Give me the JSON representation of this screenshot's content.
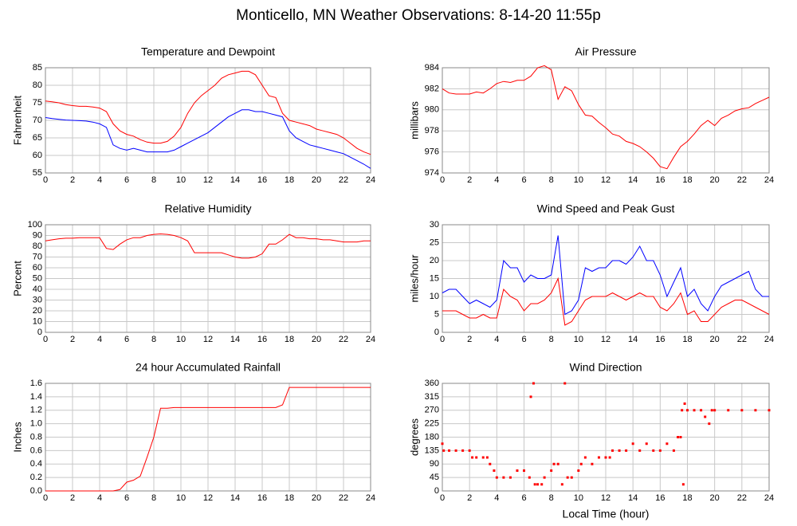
{
  "title": "Monticello, MN Weather Observations: 8-14-20 11:55p",
  "chart_data": [
    {
      "type": "line",
      "title": "Temperature and Dewpoint",
      "ylabel": "Fahrenheit",
      "xlim": [
        0,
        24
      ],
      "xticks": [
        0,
        2,
        4,
        6,
        8,
        10,
        12,
        14,
        16,
        18,
        20,
        22,
        24
      ],
      "ylim": [
        55,
        85
      ],
      "yticks": [
        55,
        60,
        65,
        70,
        75,
        80,
        85
      ],
      "grid": true,
      "x": [
        0,
        0.5,
        1,
        1.5,
        2,
        2.5,
        3,
        3.5,
        4,
        4.5,
        5,
        5.5,
        6,
        6.5,
        7,
        7.5,
        8,
        8.5,
        9,
        9.5,
        10,
        10.5,
        11,
        11.5,
        12,
        12.5,
        13,
        13.5,
        14,
        14.5,
        15,
        15.5,
        16,
        16.5,
        17,
        17.5,
        18,
        18.5,
        19,
        19.5,
        20,
        20.5,
        21,
        21.5,
        22,
        22.5,
        23,
        23.5,
        24
      ],
      "series": [
        {
          "color": "#ff0000",
          "values": [
            75.5,
            75.3,
            75,
            74.5,
            74.2,
            74,
            74,
            73.8,
            73.5,
            72.5,
            69,
            67,
            66,
            65.5,
            64.5,
            63.8,
            63.5,
            63.5,
            64,
            65.5,
            68,
            72,
            75,
            77,
            78.5,
            80,
            82,
            83,
            83.5,
            84,
            84,
            83,
            80,
            77,
            76.5,
            72,
            70,
            69.5,
            69,
            68.5,
            67.5,
            67,
            66.5,
            66,
            65,
            63.5,
            62,
            61,
            60.3
          ]
        },
        {
          "color": "#0000ff",
          "values": [
            70.8,
            70.5,
            70.3,
            70.1,
            70,
            69.9,
            69.8,
            69.5,
            69,
            68,
            63,
            62,
            61.5,
            62,
            61.5,
            61,
            61,
            61,
            61,
            61.5,
            62.5,
            63.5,
            64.5,
            65.5,
            66.5,
            68,
            69.5,
            71,
            72,
            73,
            73,
            72.5,
            72.5,
            72,
            71.5,
            71,
            67,
            65,
            64,
            63,
            62.5,
            62,
            61.5,
            61,
            60.5,
            59.5,
            58.5,
            57.5,
            56.3
          ]
        }
      ]
    },
    {
      "type": "line",
      "title": "Air Pressure",
      "ylabel": "millibars",
      "xlim": [
        0,
        24
      ],
      "xticks": [
        0,
        2,
        4,
        6,
        8,
        10,
        12,
        14,
        16,
        18,
        20,
        22,
        24
      ],
      "ylim": [
        974,
        984
      ],
      "yticks": [
        974,
        976,
        978,
        980,
        982,
        984
      ],
      "grid": true,
      "x": [
        0,
        0.5,
        1,
        1.5,
        2,
        2.5,
        3,
        3.5,
        4,
        4.5,
        5,
        5.5,
        6,
        6.5,
        7,
        7.5,
        8,
        8.5,
        9,
        9.5,
        10,
        10.5,
        11,
        11.5,
        12,
        12.5,
        13,
        13.5,
        14,
        14.5,
        15,
        15.5,
        16,
        16.5,
        17,
        17.5,
        18,
        18.5,
        19,
        19.5,
        20,
        20.5,
        21,
        21.5,
        22,
        22.5,
        23,
        23.5,
        24
      ],
      "series": [
        {
          "color": "#ff0000",
          "values": [
            982,
            981.6,
            981.5,
            981.5,
            981.5,
            981.7,
            981.6,
            982,
            982.5,
            982.7,
            982.6,
            982.8,
            982.8,
            983.2,
            984,
            984.2,
            983.8,
            981,
            982.2,
            981.8,
            980.5,
            979.5,
            979.4,
            978.8,
            978.3,
            977.7,
            977.5,
            977,
            976.8,
            976.5,
            976,
            975.4,
            974.6,
            974.4,
            975.5,
            976.5,
            977,
            977.7,
            978.5,
            979,
            978.5,
            979.2,
            979.5,
            979.9,
            980.1,
            980.2,
            980.6,
            980.9,
            981.2
          ]
        }
      ]
    },
    {
      "type": "line",
      "title": "Relative Humidity",
      "ylabel": "Percent",
      "xlim": [
        0,
        24
      ],
      "xticks": [
        0,
        2,
        4,
        6,
        8,
        10,
        12,
        14,
        16,
        18,
        20,
        22,
        24
      ],
      "ylim": [
        0,
        100
      ],
      "yticks": [
        0,
        10,
        20,
        30,
        40,
        50,
        60,
        70,
        80,
        90,
        100
      ],
      "grid": true,
      "x": [
        0,
        0.5,
        1,
        1.5,
        2,
        2.5,
        3,
        3.5,
        4,
        4.5,
        5,
        5.5,
        6,
        6.5,
        7,
        7.5,
        8,
        8.5,
        9,
        9.5,
        10,
        10.5,
        11,
        11.5,
        12,
        12.5,
        13,
        13.5,
        14,
        14.5,
        15,
        15.5,
        16,
        16.5,
        17,
        17.5,
        18,
        18.5,
        19,
        19.5,
        20,
        20.5,
        21,
        21.5,
        22,
        22.5,
        23,
        23.5,
        24
      ],
      "series": [
        {
          "color": "#ff0000",
          "values": [
            85,
            86,
            87,
            87.5,
            87.5,
            88,
            88,
            88,
            88,
            78,
            77,
            82,
            86,
            88,
            88,
            90,
            91,
            91.5,
            91,
            90,
            88,
            85,
            74,
            74,
            74,
            74,
            74,
            72,
            70,
            69,
            69,
            70,
            73,
            82,
            82,
            86,
            91,
            88,
            88,
            87,
            87,
            86,
            86,
            85,
            84,
            84,
            84,
            85,
            85
          ]
        }
      ]
    },
    {
      "type": "line",
      "title": "Wind Speed and Peak Gust",
      "ylabel": "miles/hour",
      "xlim": [
        0,
        24
      ],
      "xticks": [
        0,
        2,
        4,
        6,
        8,
        10,
        12,
        14,
        16,
        18,
        20,
        22,
        24
      ],
      "ylim": [
        0,
        30
      ],
      "yticks": [
        0,
        5,
        10,
        15,
        20,
        25,
        30
      ],
      "grid": true,
      "x": [
        0,
        0.5,
        1,
        1.5,
        2,
        2.5,
        3,
        3.5,
        4,
        4.5,
        5,
        5.5,
        6,
        6.5,
        7,
        7.5,
        8,
        8.5,
        9,
        9.5,
        10,
        10.5,
        11,
        11.5,
        12,
        12.5,
        13,
        13.5,
        14,
        14.5,
        15,
        15.5,
        16,
        16.5,
        17,
        17.5,
        18,
        18.5,
        19,
        19.5,
        20,
        20.5,
        21,
        21.5,
        22,
        22.5,
        23,
        23.5,
        24
      ],
      "series": [
        {
          "color": "#0000ff",
          "values": [
            11,
            12,
            12,
            10,
            8,
            9,
            8,
            7,
            9,
            20,
            18,
            18,
            14,
            16,
            15,
            15,
            16,
            27,
            5,
            6,
            9,
            18,
            17,
            18,
            18,
            20,
            20,
            19,
            21,
            24,
            20,
            20,
            16,
            10,
            14,
            18,
            10,
            12,
            8,
            6,
            10,
            13,
            14,
            15,
            16,
            17,
            12,
            10,
            10
          ]
        },
        {
          "color": "#ff0000",
          "values": [
            6,
            6,
            6,
            5,
            4,
            4,
            5,
            4,
            4,
            12,
            10,
            9,
            6,
            8,
            8,
            9,
            11,
            15,
            2,
            3,
            6,
            9,
            10,
            10,
            10,
            11,
            10,
            9,
            10,
            11,
            10,
            10,
            7,
            6,
            8,
            11,
            5,
            6,
            3,
            3,
            5,
            7,
            8,
            9,
            9,
            8,
            7,
            6,
            5
          ]
        }
      ]
    },
    {
      "type": "line",
      "title": "24 hour Accumulated Rainfall",
      "ylabel": "Inches",
      "xlim": [
        0,
        24
      ],
      "xticks": [
        0,
        2,
        4,
        6,
        8,
        10,
        12,
        14,
        16,
        18,
        20,
        22,
        24
      ],
      "ylim": [
        0,
        1.6
      ],
      "yticks": [
        {
          "value": 0,
          "label": "0.0"
        },
        0.2,
        0.4,
        0.6,
        0.8,
        {
          "value": 1,
          "label": "1.0"
        },
        1.2,
        1.4,
        1.6
      ],
      "grid": true,
      "x": [
        0,
        0.5,
        1,
        1.5,
        2,
        2.5,
        3,
        3.5,
        4,
        4.5,
        5,
        5.5,
        6,
        6.5,
        7,
        7.5,
        8,
        8.5,
        9,
        9.5,
        10,
        10.5,
        11,
        11.5,
        12,
        12.5,
        13,
        13.5,
        14,
        14.5,
        15,
        15.5,
        16,
        16.5,
        17,
        17.5,
        18,
        18.5,
        19,
        19.5,
        20,
        20.5,
        21,
        21.5,
        22,
        22.5,
        23,
        23.5,
        24
      ],
      "series": [
        {
          "color": "#ff0000",
          "values": [
            0,
            0,
            0,
            0,
            0,
            0,
            0,
            0,
            0,
            0,
            0,
            0.02,
            0.13,
            0.16,
            0.22,
            0.5,
            0.8,
            1.23,
            1.23,
            1.24,
            1.24,
            1.24,
            1.24,
            1.24,
            1.24,
            1.24,
            1.24,
            1.24,
            1.24,
            1.24,
            1.24,
            1.24,
            1.24,
            1.24,
            1.24,
            1.28,
            1.54,
            1.54,
            1.54,
            1.54,
            1.54,
            1.54,
            1.54,
            1.54,
            1.54,
            1.54,
            1.54,
            1.54,
            1.54
          ]
        }
      ]
    },
    {
      "type": "scatter",
      "title": "Wind Direction",
      "ylabel": "degrees",
      "xlabel": "Local Time (hour)",
      "xlim": [
        0,
        24
      ],
      "xticks": [
        0,
        2,
        4,
        6,
        8,
        10,
        12,
        14,
        16,
        18,
        20,
        22,
        24
      ],
      "ylim": [
        0,
        360
      ],
      "yticks": [
        0,
        45,
        90,
        135,
        180,
        225,
        270,
        315,
        360
      ],
      "grid": true,
      "x": [
        0,
        0.1,
        0.5,
        1,
        1.5,
        2,
        2.2,
        2.5,
        3,
        3.3,
        3.5,
        3.8,
        4,
        4.5,
        5,
        5.5,
        6,
        6.4,
        6.5,
        6.7,
        6.8,
        7,
        7.3,
        7.5,
        8,
        8.2,
        8.5,
        8.8,
        9,
        9.2,
        9.5,
        10,
        10.2,
        10.5,
        11,
        11.5,
        12,
        12.3,
        12.5,
        13,
        13.5,
        14,
        14.5,
        15,
        15.5,
        16,
        16.5,
        17,
        17.3,
        17.5,
        17.6,
        17.7,
        17.8,
        18,
        18.5,
        19,
        19.3,
        19.6,
        19.8,
        20,
        21,
        22,
        23,
        24
      ],
      "series": [
        {
          "color": "#ff0000",
          "values": [
            158,
            135,
            135,
            135,
            135,
            135,
            112,
            112,
            112,
            112,
            90,
            68,
            45,
            45,
            45,
            68,
            68,
            45,
            315,
            360,
            22,
            22,
            22,
            45,
            68,
            90,
            90,
            22,
            360,
            45,
            45,
            68,
            90,
            112,
            90,
            112,
            112,
            112,
            135,
            135,
            135,
            158,
            135,
            158,
            135,
            135,
            158,
            135,
            180,
            180,
            270,
            22,
            292,
            270,
            270,
            270,
            248,
            225,
            270,
            270,
            270,
            270,
            270,
            270
          ]
        }
      ]
    }
  ]
}
